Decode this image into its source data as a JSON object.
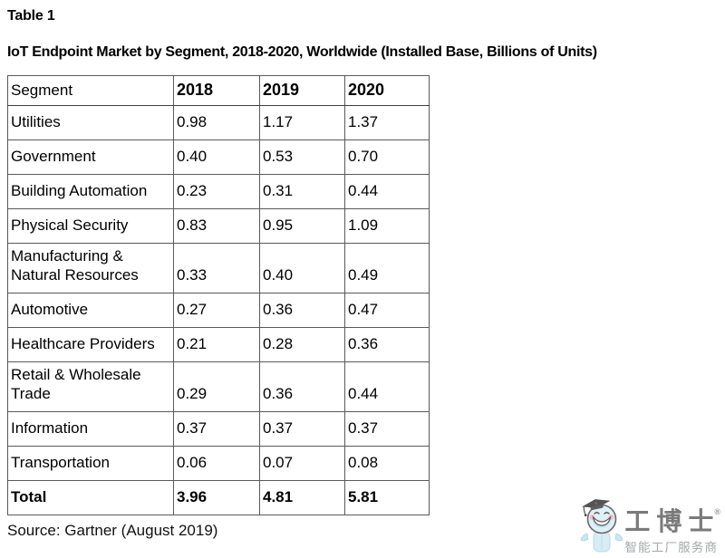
{
  "page": {
    "label": "Table 1",
    "title": "IoT Endpoint Market by Segment, 2018-2020, Worldwide (Installed Base, Billions of Units)",
    "source": "Source: Gartner (August 2019)"
  },
  "chart_data": {
    "type": "table",
    "title": "IoT Endpoint Market by Segment, 2018-2020, Worldwide (Installed Base, Billions of Units)",
    "columns": [
      "Segment",
      "2018",
      "2019",
      "2020"
    ],
    "rows": [
      {
        "segment": "Utilities",
        "values": [
          "0.98",
          "1.17",
          "1.37"
        ],
        "bold": false
      },
      {
        "segment": "Government",
        "values": [
          "0.40",
          "0.53",
          "0.70"
        ],
        "bold": false
      },
      {
        "segment": "Building Automation",
        "values": [
          "0.23",
          "0.31",
          "0.44"
        ],
        "bold": false
      },
      {
        "segment": "Physical Security",
        "values": [
          "0.83",
          "0.95",
          "1.09"
        ],
        "bold": false
      },
      {
        "segment": "Manufacturing & Natural Resources",
        "values": [
          "0.33",
          "0.40",
          "0.49"
        ],
        "bold": false
      },
      {
        "segment": "Automotive",
        "values": [
          "0.27",
          "0.36",
          "0.47"
        ],
        "bold": false
      },
      {
        "segment": "Healthcare Providers",
        "values": [
          "0.21",
          "0.28",
          "0.36"
        ],
        "bold": false
      },
      {
        "segment": "Retail & Wholesale Trade",
        "values": [
          "0.29",
          "0.36",
          "0.44"
        ],
        "bold": false
      },
      {
        "segment": "Information",
        "values": [
          "0.37",
          "0.37",
          "0.37"
        ],
        "bold": false
      },
      {
        "segment": "Transportation",
        "values": [
          "0.06",
          "0.07",
          "0.08"
        ],
        "bold": false
      },
      {
        "segment": "Total",
        "values": [
          "3.96",
          "4.81",
          "5.81"
        ],
        "bold": true
      }
    ]
  },
  "watermark": {
    "brand": "工博士",
    "registered": "®",
    "tagline": "智能工厂服务商",
    "mascot_icon": "graduate-mascot-icon",
    "colors": {
      "mascot_blue": "#bfe3ef",
      "mascot_outline": "#4a4a4a",
      "cheek_pink": "#f3b3bd",
      "brand_gray": "#5d5d5d",
      "tagline_gray": "#8f9699"
    }
  }
}
